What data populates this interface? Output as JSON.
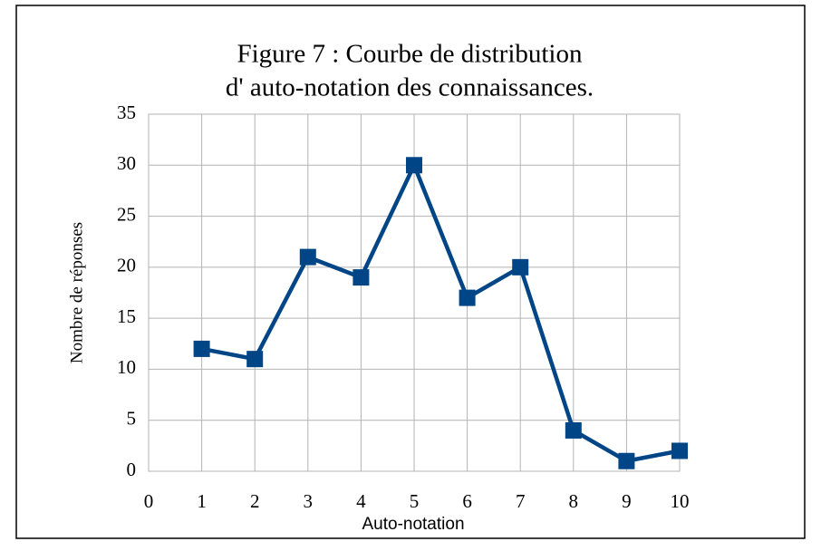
{
  "chart_data": {
    "type": "line",
    "title": [
      "Figure 7 : Courbe de distribution",
      "d' auto-notation des connaissances."
    ],
    "x_label": "Auto-notation",
    "y_label": "Nombre de réponses",
    "x": [
      1,
      2,
      3,
      4,
      5,
      6,
      7,
      8,
      9,
      10
    ],
    "series": [
      {
        "color": "#004586",
        "values": [
          12,
          11,
          21,
          19,
          30,
          17,
          20,
          4,
          1,
          2
        ]
      }
    ],
    "xlim": [
      0,
      10
    ],
    "xticks": [
      0,
      1,
      2,
      3,
      4,
      5,
      6,
      7,
      8,
      9,
      10
    ],
    "ylim": [
      0,
      35
    ],
    "yticks": [
      0,
      5,
      10,
      15,
      20,
      25,
      30,
      35
    ],
    "grid": true
  }
}
